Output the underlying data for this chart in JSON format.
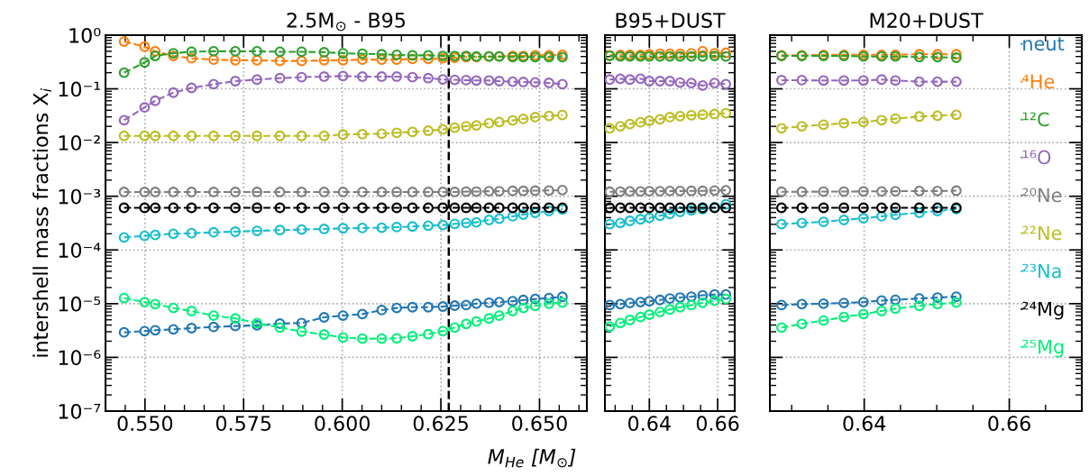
{
  "chart_data": [
    {
      "type": "line",
      "title": "2.5M$_{⊙}$ - B95",
      "xlabel": "M$_{He}$ [M$_{⊙}$]",
      "ylabel": "intershell mass fractions X$_{i}$",
      "log": true,
      "grid": true,
      "marker": "circle",
      "line_style": "dashed",
      "xlim": [
        0.54,
        0.662
      ],
      "xticks": [
        {
          "value": 0.55,
          "label": "0.550"
        },
        {
          "value": 0.575,
          "label": "0.575"
        },
        {
          "value": 0.6,
          "label": "0.600"
        },
        {
          "value": 0.625,
          "label": "0.625"
        },
        {
          "value": 0.65,
          "label": "0.650"
        }
      ],
      "ylim": [
        1e-07,
        1
      ],
      "yticks": [
        {
          "value": 1,
          "label": "10⁰"
        },
        {
          "value": 0.1,
          "label": "10⁻¹"
        },
        {
          "value": 0.01,
          "label": "10⁻²"
        },
        {
          "value": 0.001,
          "label": "10⁻³"
        },
        {
          "value": 0.0001,
          "label": "10⁻⁴"
        },
        {
          "value": 1e-05,
          "label": "10⁻⁵"
        },
        {
          "value": 1e-06,
          "label": "10⁻⁶"
        },
        {
          "value": 1e-07,
          "label": "10⁻⁷"
        }
      ],
      "ref_lines": [
        {
          "axis": "x",
          "value": 0.627,
          "color": "#000000",
          "line_style": "dashed"
        }
      ],
      "x": [
        0.5447,
        0.5499,
        0.5526,
        0.5572,
        0.5618,
        0.5674,
        0.5729,
        0.5784,
        0.5842,
        0.5897,
        0.5954,
        0.6002,
        0.6051,
        0.61,
        0.6138,
        0.6178,
        0.6218,
        0.6255,
        0.6285,
        0.6314,
        0.634,
        0.6372,
        0.6398,
        0.6432,
        0.6459,
        0.6489,
        0.6524,
        0.6558
      ],
      "series": [
        {
          "color": "#1f77b4",
          "values": [
            2.92e-06,
            3.08e-06,
            3.2e-06,
            3.32e-06,
            3.5e-06,
            3.68e-06,
            3.83e-06,
            3.95e-06,
            4.25e-06,
            4.36e-06,
            5.56e-06,
            6e-06,
            6.4e-06,
            7.6e-06,
            8.3e-06,
            8.6e-06,
            8.6e-06,
            8.85e-06,
            9.2e-06,
            9.4e-06,
            1e-05,
            1.04e-05,
            1.07e-05,
            1.11e-05,
            1.17e-05,
            1.22e-05,
            1.27e-05,
            1.34e-05
          ]
        },
        {
          "color": "#ff7f0e",
          "values": [
            0.76,
            0.61,
            0.5,
            0.41,
            0.37,
            0.35,
            0.34,
            0.34,
            0.33,
            0.33,
            0.34,
            0.34,
            0.35,
            0.35,
            0.35,
            0.36,
            0.36,
            0.37,
            0.38,
            0.39,
            0.39,
            0.4,
            0.4,
            0.41,
            0.41,
            0.42,
            0.42,
            0.43
          ]
        },
        {
          "color": "#2ca02c",
          "values": [
            0.2,
            0.31,
            0.41,
            0.46,
            0.49,
            0.5,
            0.5,
            0.5,
            0.49,
            0.49,
            0.48,
            0.46,
            0.45,
            0.44,
            0.43,
            0.42,
            0.42,
            0.41,
            0.41,
            0.41,
            0.4,
            0.4,
            0.4,
            0.39,
            0.39,
            0.39,
            0.39,
            0.39
          ]
        },
        {
          "color": "#9467bd",
          "values": [
            0.026,
            0.045,
            0.06,
            0.085,
            0.104,
            0.122,
            0.139,
            0.149,
            0.158,
            0.165,
            0.169,
            0.173,
            0.169,
            0.169,
            0.169,
            0.165,
            0.158,
            0.15,
            0.147,
            0.145,
            0.143,
            0.143,
            0.139,
            0.136,
            0.134,
            0.132,
            0.129,
            0.122
          ]
        },
        {
          "color": "#7f7f7f",
          "values": [
            0.0012,
            0.0012,
            0.0012,
            0.0012,
            0.0012,
            0.0012,
            0.0012,
            0.0012,
            0.0012,
            0.0012,
            0.0012,
            0.0012,
            0.0012,
            0.0012,
            0.0012,
            0.0012,
            0.0012,
            0.0012,
            0.0012,
            0.00122,
            0.00122,
            0.00124,
            0.00124,
            0.00126,
            0.00126,
            0.00127,
            0.00128,
            0.0013
          ]
        },
        {
          "color": "#bcbd22",
          "values": [
            0.0133,
            0.0133,
            0.0133,
            0.0133,
            0.0133,
            0.0133,
            0.0133,
            0.0133,
            0.0133,
            0.0133,
            0.0133,
            0.0141,
            0.0143,
            0.0146,
            0.0152,
            0.0158,
            0.0166,
            0.0175,
            0.0189,
            0.0201,
            0.0209,
            0.0229,
            0.0241,
            0.0258,
            0.0275,
            0.0297,
            0.0313,
            0.0325
          ]
        },
        {
          "color": "#17becf",
          "values": [
            0.000171,
            0.000183,
            0.00019,
            0.0002,
            0.000205,
            0.000213,
            0.000219,
            0.000227,
            0.000234,
            0.00024,
            0.000246,
            0.000253,
            0.000256,
            0.000259,
            0.000266,
            0.000273,
            0.000283,
            0.000291,
            0.000306,
            0.000318,
            0.000327,
            0.000362,
            0.000381,
            0.000423,
            0.000456,
            0.000493,
            0.000532,
            0.000568
          ]
        },
        {
          "color": "#000000",
          "values": [
            0.00061,
            0.00061,
            0.00061,
            0.00061,
            0.00061,
            0.00061,
            0.00061,
            0.00061,
            0.00061,
            0.00061,
            0.00061,
            0.00061,
            0.00061,
            0.00061,
            0.00061,
            0.00061,
            0.00061,
            0.00061,
            0.00061,
            0.00061,
            0.00061,
            0.00061,
            0.00061,
            0.00061,
            0.00061,
            0.00061,
            0.00061,
            0.00061
          ]
        },
        {
          "color": "#00f07a",
          "values": [
            1.27e-05,
            1.07e-05,
            9.8e-06,
            8.3e-06,
            7.3e-06,
            6e-06,
            5.3e-06,
            4.36e-06,
            3.59e-06,
            3.03e-06,
            2.67e-06,
            2.35e-06,
            2.23e-06,
            2.23e-06,
            2.26e-06,
            2.47e-06,
            2.7e-06,
            3.08e-06,
            3.59e-06,
            4.2e-06,
            4.65e-06,
            5.3e-06,
            6e-06,
            7.3e-06,
            8.3e-06,
            9.1e-06,
            1e-05,
            1.05e-05
          ]
        }
      ]
    },
    {
      "type": "line",
      "title": "B95+DUST",
      "log": true,
      "grid": true,
      "marker": "circle",
      "line_style": "dashed",
      "tick_labels": "x",
      "xlim": [
        0.627,
        0.665
      ],
      "xticks": [
        {
          "value": 0.64,
          "label": "0.64"
        },
        {
          "value": 0.66,
          "label": "0.66"
        }
      ],
      "ylim": [
        1e-07,
        1
      ],
      "x": [
        0.6284,
        0.6315,
        0.6343,
        0.6374,
        0.64,
        0.6431,
        0.646,
        0.649,
        0.6523,
        0.6556,
        0.6591,
        0.6624
      ],
      "series": [
        {
          "color": "#1f77b4",
          "values": [
            9.4e-06,
            9.8e-06,
            1.03e-05,
            1.07e-05,
            1.11e-05,
            1.17e-05,
            1.25e-05,
            1.3e-05,
            1.35e-05,
            1.43e-05,
            1.48e-05,
            1.48e-05
          ]
        },
        {
          "color": "#ff7f0e",
          "values": [
            0.42,
            0.43,
            0.43,
            0.43,
            0.44,
            0.45,
            0.45,
            0.45,
            0.46,
            0.5,
            0.46,
            0.47
          ]
        },
        {
          "color": "#2ca02c",
          "values": [
            0.41,
            0.4,
            0.4,
            0.4,
            0.4,
            0.4,
            0.4,
            0.4,
            0.4,
            0.4,
            0.41,
            0.4
          ]
        },
        {
          "color": "#9467bd",
          "values": [
            0.149,
            0.154,
            0.149,
            0.154,
            0.139,
            0.139,
            0.139,
            0.131,
            0.128,
            0.115,
            0.128,
            0.122
          ]
        },
        {
          "color": "#7f7f7f",
          "values": [
            0.00121,
            0.00122,
            0.00123,
            0.00123,
            0.00124,
            0.00124,
            0.00125,
            0.00125,
            0.00126,
            0.00126,
            0.00128,
            0.00129
          ]
        },
        {
          "color": "#bcbd22",
          "values": [
            0.0184,
            0.0201,
            0.0221,
            0.0238,
            0.0254,
            0.0271,
            0.0297,
            0.031,
            0.0322,
            0.033,
            0.034,
            0.0351
          ]
        },
        {
          "color": "#17becf",
          "values": [
            0.000302,
            0.000318,
            0.000348,
            0.000372,
            0.000396,
            0.000433,
            0.000468,
            0.000512,
            0.000546,
            0.000574,
            0.000621,
            0.000707
          ]
        },
        {
          "color": "#000000",
          "values": [
            0.00061,
            0.00061,
            0.00061,
            0.00061,
            0.00061,
            0.00061,
            0.00061,
            0.00061,
            0.00061,
            0.00061,
            0.00061,
            0.00061
          ]
        },
        {
          "color": "#00f07a",
          "values": [
            3.73e-06,
            4.36e-06,
            4.95e-06,
            5.64e-06,
            6.25e-06,
            7e-06,
            7.8e-06,
            8.6e-06,
            9.4e-06,
            1.04e-05,
            1.13e-05,
            1.22e-05
          ]
        }
      ]
    },
    {
      "type": "line",
      "title": "M20+DUST",
      "log": true,
      "grid": true,
      "marker": "circle",
      "line_style": "dashed",
      "tick_labels": "x",
      "legend": "right",
      "xlim": [
        0.627,
        0.67
      ],
      "xticks": [
        {
          "value": 0.64,
          "label": "0.64"
        },
        {
          "value": 0.66,
          "label": "0.66"
        }
      ],
      "ylim": [
        1e-07,
        1
      ],
      "x": [
        0.6286,
        0.6314,
        0.6344,
        0.6372,
        0.6399,
        0.6424,
        0.6443,
        0.6476,
        0.6501,
        0.6527
      ],
      "series": [
        {
          "name": "neut",
          "color": "#1f77b4",
          "values": [
            9.4e-06,
            9.8e-06,
            1e-05,
            1.03e-05,
            1.07e-05,
            1.14e-05,
            1.18e-05,
            1.25e-05,
            1.3e-05,
            1.35e-05
          ]
        },
        {
          "name": "⁴He",
          "color": "#ff7f0e",
          "values": [
            0.42,
            0.42,
            0.43,
            0.43,
            0.43,
            0.43,
            0.43,
            0.44,
            0.44,
            0.44
          ]
        },
        {
          "name": "¹²C",
          "color": "#2ca02c",
          "values": [
            0.41,
            0.41,
            0.41,
            0.41,
            0.4,
            0.4,
            0.4,
            0.39,
            0.39,
            0.38
          ]
        },
        {
          "name": "¹⁶O",
          "color": "#9467bd",
          "values": [
            0.145,
            0.145,
            0.143,
            0.143,
            0.143,
            0.149,
            0.143,
            0.136,
            0.136,
            0.136
          ]
        },
        {
          "name": "²⁰Ne",
          "color": "#7f7f7f",
          "values": [
            0.00121,
            0.00121,
            0.00122,
            0.00122,
            0.00123,
            0.00123,
            0.00124,
            0.00125,
            0.00125,
            0.00127
          ]
        },
        {
          "name": "²²Ne",
          "color": "#bcbd22",
          "values": [
            0.0184,
            0.0201,
            0.0215,
            0.0229,
            0.0241,
            0.0261,
            0.0278,
            0.0305,
            0.0316,
            0.0329
          ]
        },
        {
          "name": "²³Na",
          "color": "#17becf",
          "values": [
            0.000302,
            0.000318,
            0.000334,
            0.000362,
            0.00039,
            0.000423,
            0.000452,
            0.000493,
            0.000532,
            0.000578
          ]
        },
        {
          "name": "²⁴Mg",
          "color": "#000000",
          "values": [
            0.00061,
            0.00061,
            0.00061,
            0.00061,
            0.00061,
            0.00061,
            0.00061,
            0.00061,
            0.00061,
            0.00061
          ]
        },
        {
          "name": "²⁵Mg",
          "color": "#00f07a",
          "values": [
            3.59e-06,
            4.2e-06,
            4.85e-06,
            5.64e-06,
            6.4e-06,
            7.3e-06,
            8.1e-06,
            9.1e-06,
            9.8e-06,
            1.05e-05
          ]
        }
      ]
    }
  ]
}
